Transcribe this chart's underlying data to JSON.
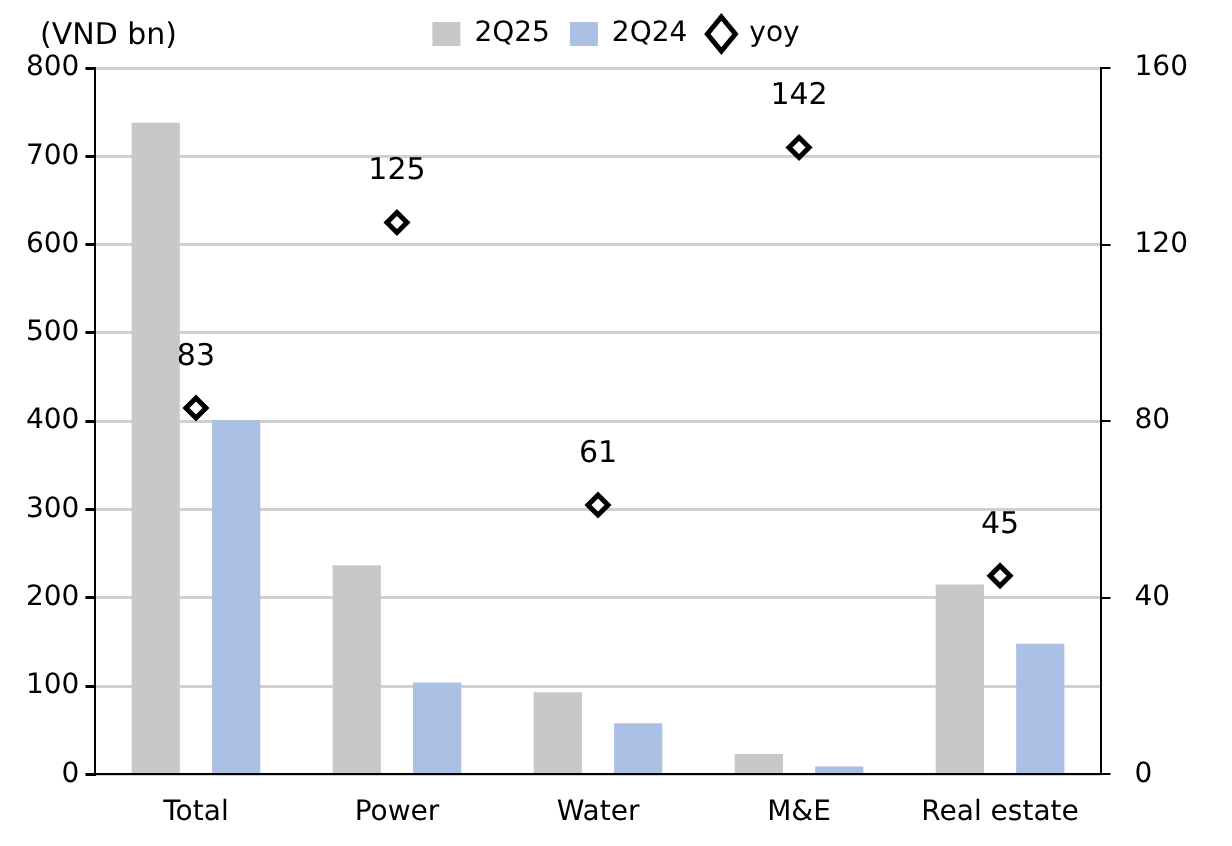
{
  "chart_data": {
    "type": "bar",
    "ylabel": "(VND bn)",
    "categories": [
      "Total",
      "Power",
      "Water",
      "M&E",
      "Real estate"
    ],
    "series": [
      {
        "name": "2Q25",
        "color": "#c8c8c8",
        "values": [
          738,
          237,
          93,
          23,
          215
        ]
      },
      {
        "name": "2Q24",
        "color": "#abc0e4",
        "values": [
          401,
          104,
          58,
          9,
          148
        ]
      },
      {
        "name": "yoy",
        "type": "scatter",
        "axis": "y2",
        "marker": "diamond",
        "color": "#000000",
        "values": [
          83,
          125,
          61,
          142,
          45
        ],
        "value_labels": [
          "83",
          "125",
          "61",
          "142",
          "45"
        ]
      }
    ],
    "ylim": [
      0,
      800
    ],
    "yticks": [
      0,
      100,
      200,
      300,
      400,
      500,
      600,
      700,
      800
    ],
    "y2lim": [
      0,
      160
    ],
    "y2ticks": [
      0,
      40,
      80,
      120,
      160
    ],
    "grid": "y",
    "legend": "top"
  }
}
